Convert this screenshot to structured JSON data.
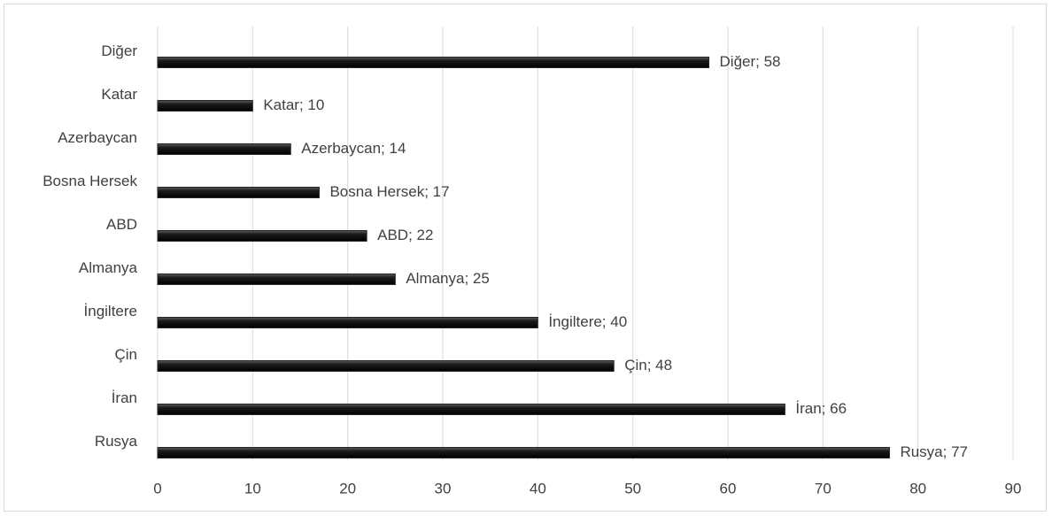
{
  "chart_data": {
    "type": "bar",
    "orientation": "horizontal",
    "categories": [
      "Rusya",
      "İran",
      "Çin",
      "İngiltere",
      "Almanya",
      "ABD",
      "Bosna Hersek",
      "Azerbaycan",
      "Katar",
      "Diğer"
    ],
    "values": [
      77,
      66,
      48,
      40,
      25,
      22,
      17,
      14,
      10,
      58
    ],
    "value_labels": [
      "Rusya; 77",
      "İran; 66",
      "Çin; 48",
      "İngiltere; 40",
      "Almanya; 25",
      "ABD; 22",
      "Bosna Hersek; 17",
      "Azerbaycan; 14",
      "Katar; 10",
      "Diğer; 58"
    ],
    "color": "#262626",
    "xlim": [
      0,
      90
    ],
    "xticks": [
      0,
      10,
      20,
      30,
      40,
      50,
      60,
      70,
      80,
      90
    ],
    "grid": true
  }
}
